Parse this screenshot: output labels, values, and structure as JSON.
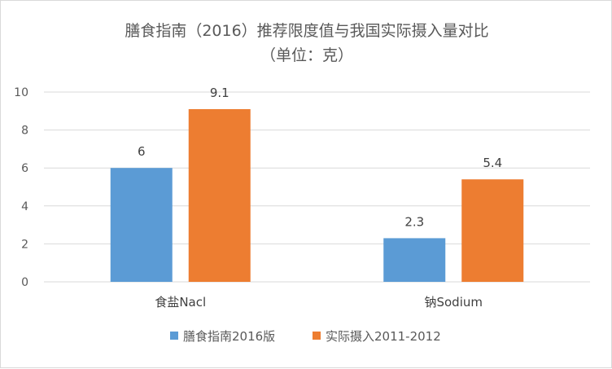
{
  "chart_data": {
    "type": "bar",
    "title": "膳食指南（2016）推荐限度值与我国实际摄入量对比",
    "subtitle": "（单位：克）",
    "categories": [
      "食盐Nacl",
      "钠Sodium"
    ],
    "series": [
      {
        "name": "膳食指南2016版",
        "values": [
          6,
          2.3
        ],
        "color": "#5b9bd5"
      },
      {
        "name": "实际摄入2011-2012",
        "values": [
          9.1,
          5.4
        ],
        "color": "#ed7d31"
      }
    ],
    "data_labels": [
      [
        "6",
        "2.3"
      ],
      [
        "9.1",
        "5.4"
      ]
    ],
    "yticks": [
      "0",
      "2",
      "4",
      "6",
      "8",
      "10"
    ],
    "ylim": [
      0,
      10
    ],
    "grid": true,
    "legend_position": "bottom"
  },
  "colors": {
    "gridline": "#d9d9d9",
    "text": "#595959"
  }
}
